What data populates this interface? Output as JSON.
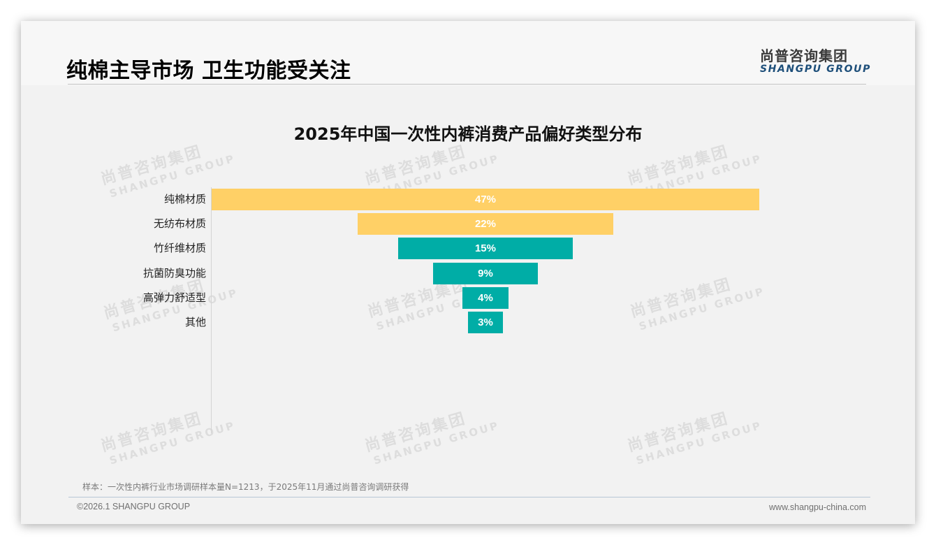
{
  "header": {
    "title": "纯棉主导市场 卫生功能受关注",
    "logo_cn": "尚普咨询集团",
    "logo_en": "SHANGPU GROUP"
  },
  "watermark": {
    "cn": "尚普咨询集团",
    "en": "SHANGPU GROUP"
  },
  "colors": {
    "material_bar": "#ffd066",
    "feature_bar": "#00ada6",
    "logo_en": "#1e4f7a"
  },
  "chart_data": {
    "type": "bar",
    "orientation": "horizontal-centered-funnel",
    "title": "2025年中国一次性内裤消费产品偏好类型分布",
    "categories": [
      "纯棉材质",
      "无纺布材质",
      "竹纤维材质",
      "抗菌防臭功能",
      "高弹力舒适型",
      "其他"
    ],
    "values": [
      47,
      22,
      15,
      9,
      4,
      3
    ],
    "value_labels": [
      "47%",
      "22%",
      "15%",
      "9%",
      "4%",
      "3%"
    ],
    "unit": "%",
    "bar_colors": [
      "#ffd066",
      "#ffd066",
      "#00ada6",
      "#00ada6",
      "#00ada6",
      "#00ada6"
    ],
    "xlabel": "",
    "ylabel": "",
    "grid": false,
    "legend": null
  },
  "footer": {
    "note": "样本：一次性内裤行业市场调研样本量N=1213，于2025年11月通过尚普咨询调研获得",
    "copyright": "©2026.1 SHANGPU GROUP",
    "website": "www.shangpu-china.com"
  }
}
